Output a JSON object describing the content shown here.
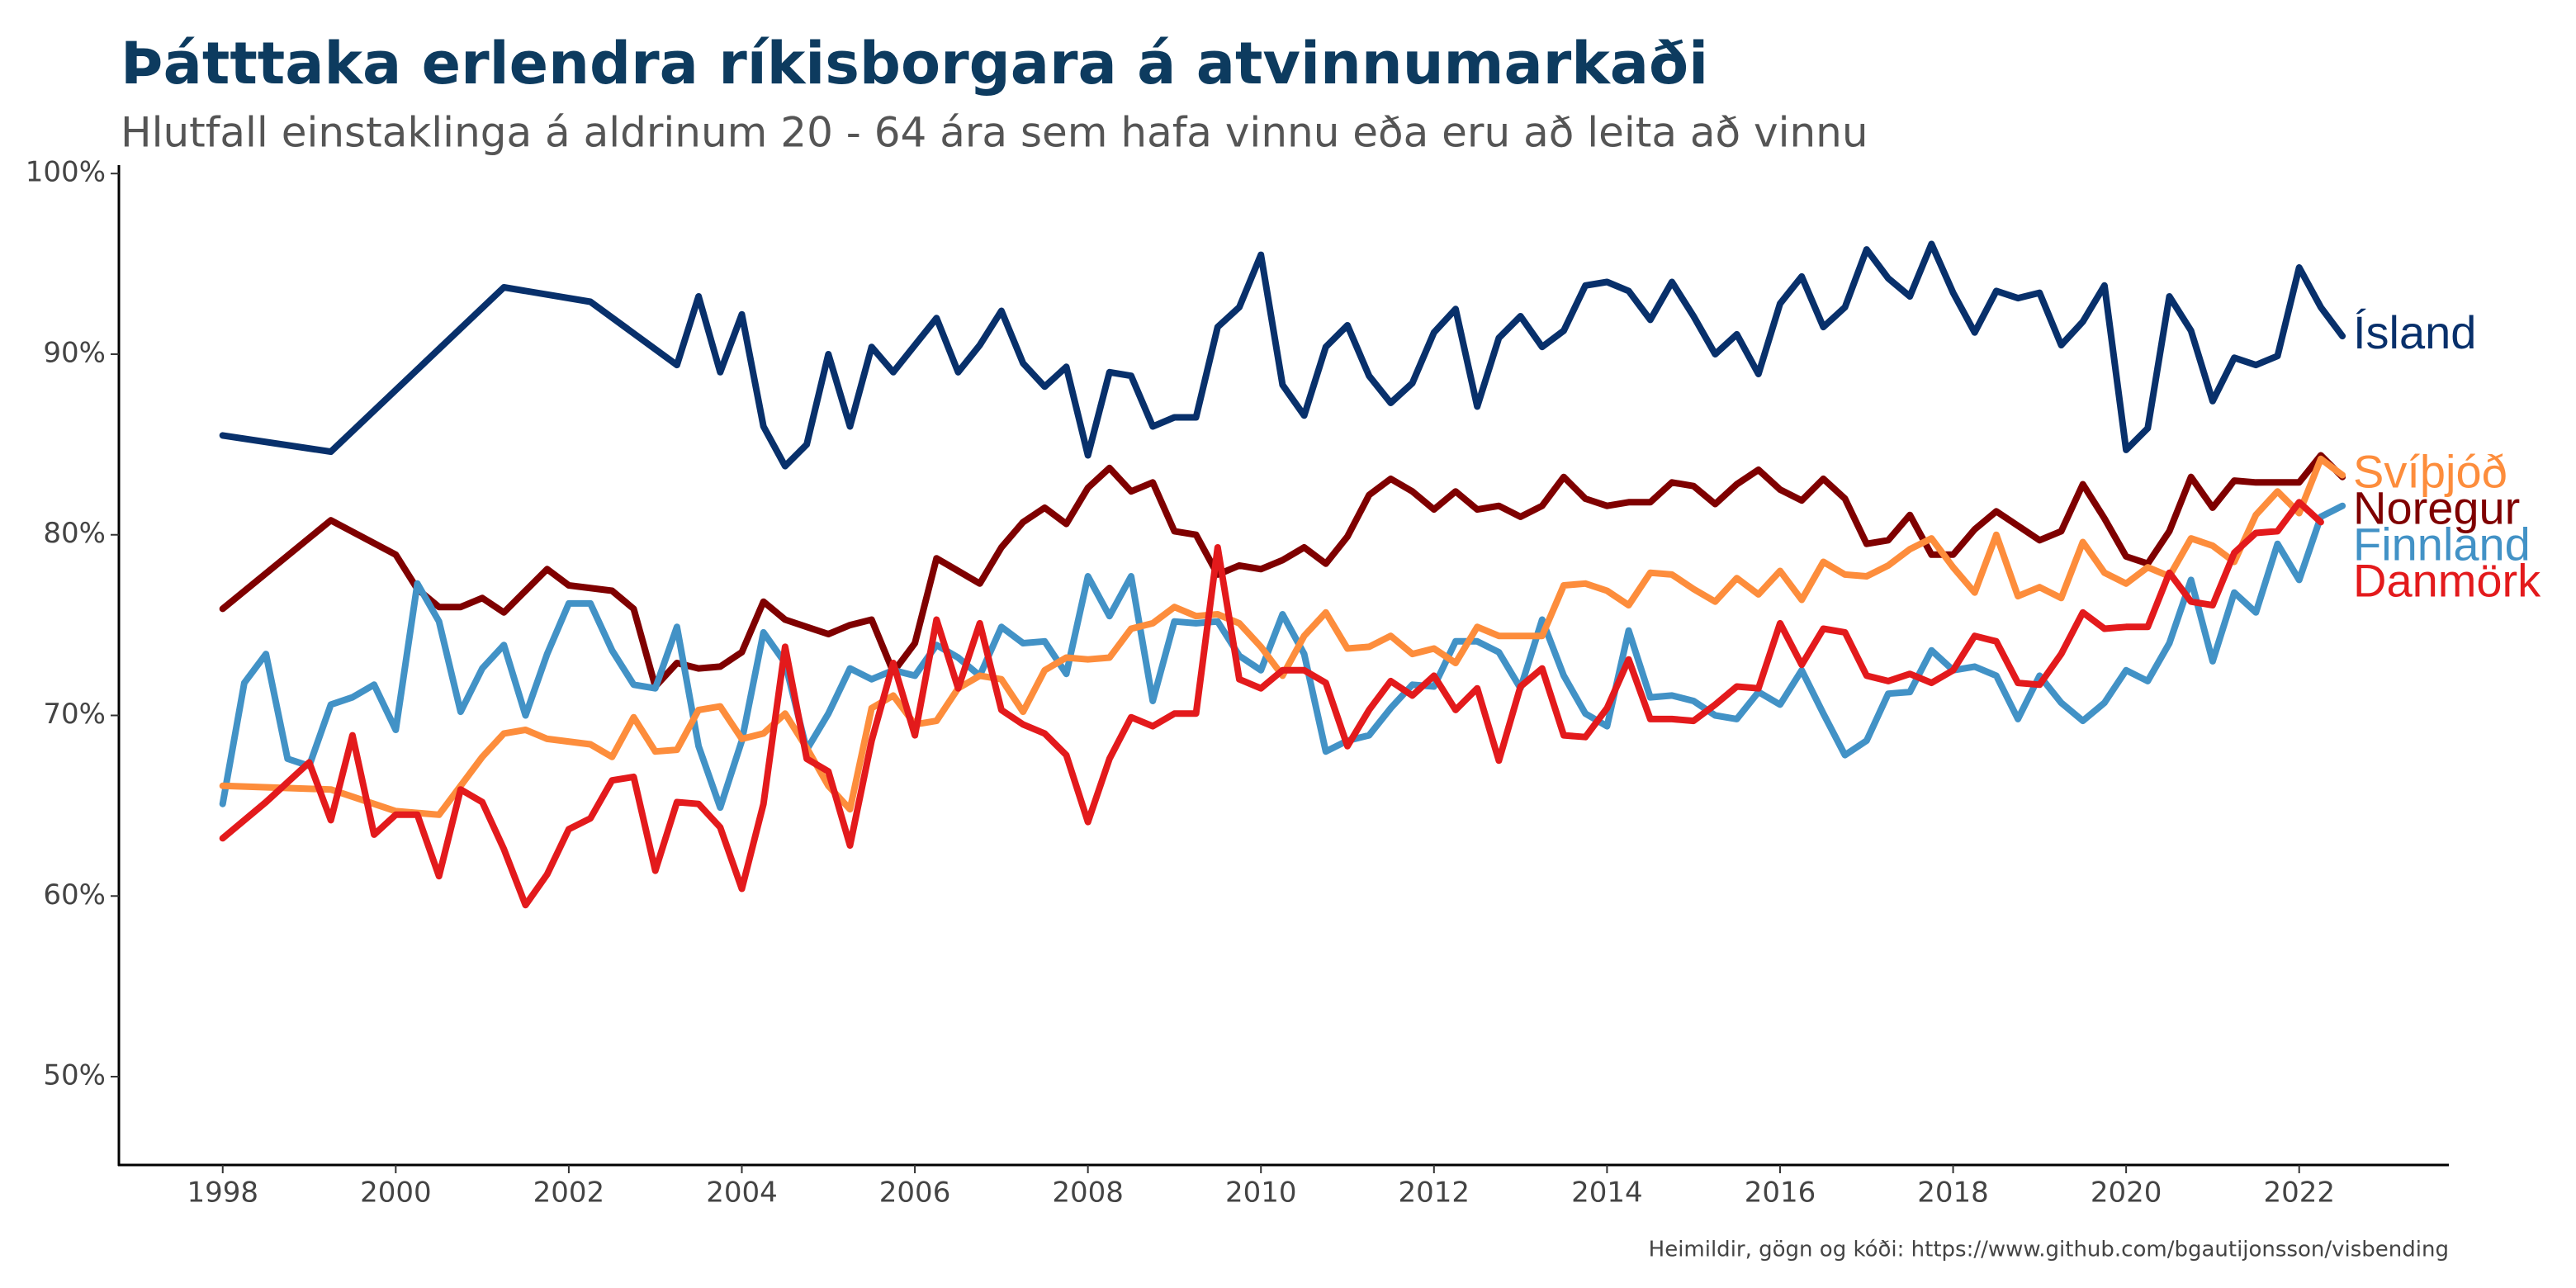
{
  "chart_data": {
    "type": "line",
    "title": "Þátttaka erlendra ríkisborgara á atvinnumarkaði",
    "subtitle": "Hlutfall einstaklinga á aldrinum 20 - 64 ára sem hafa vinnu eða eru að leita að vinnu",
    "caption": "Heimildir, gögn og kóði: https://www.github.com/bgautijonsson/visbending",
    "xlim": [
      1996.8,
      2023.73
    ],
    "xticks": [
      1998,
      2000,
      2002,
      2004,
      2006,
      2008,
      2010,
      2012,
      2014,
      2016,
      2018,
      2020,
      2022
    ],
    "ylim": [
      45,
      100
    ],
    "yticks": [
      {
        "value": 50,
        "label": "50%"
      },
      {
        "value": 60,
        "label": "60%"
      },
      {
        "value": 70,
        "label": "70%"
      },
      {
        "value": 80,
        "label": "80%"
      },
      {
        "value": 90,
        "label": "90%"
      },
      {
        "value": 100,
        "label": "100%"
      }
    ],
    "grid": false,
    "series": [
      {
        "name": "Ísland",
        "color": "#08306b",
        "x": [
          1998,
          1999.25,
          2001.25,
          2002.25,
          2003.25,
          2003.5,
          2003.75,
          2004,
          2004.25,
          2004.5,
          2004.75,
          2005,
          2005.25,
          2005.5,
          2005.75,
          2006,
          2006.25,
          2006.5,
          2006.75,
          2007,
          2007.25,
          2007.5,
          2007.75,
          2008,
          2008.25,
          2008.5,
          2008.75,
          2009,
          2009.25,
          2009.5,
          2009.75,
          2010,
          2010.25,
          2010.5,
          2010.75,
          2011,
          2011.25,
          2011.5,
          2011.75,
          2012,
          2012.25,
          2012.5,
          2012.75,
          2013,
          2013.25,
          2013.5,
          2013.75,
          2014,
          2014.25,
          2014.5,
          2014.75,
          2015,
          2015.25,
          2015.5,
          2015.75,
          2016,
          2016.25,
          2016.5,
          2016.75,
          2017,
          2017.25,
          2017.5,
          2017.75,
          2018,
          2018.25,
          2018.5,
          2018.75,
          2019,
          2019.25,
          2019.5,
          2019.75,
          2020,
          2020.25,
          2020.5,
          2020.75,
          2021,
          2021.25,
          2021.5,
          2021.75,
          2022,
          2022.25,
          2022.5
        ],
        "values": [
          85.5,
          84.6,
          93.7,
          92.9,
          89.4,
          93.2,
          89,
          92.2,
          86,
          83.8,
          85,
          90,
          86,
          90.4,
          89,
          90.5,
          92,
          89,
          90.5,
          92.4,
          89.5,
          88.2,
          89.3,
          84.4,
          89,
          88.8,
          86,
          86.5,
          86.5,
          91.5,
          92.6,
          95.5,
          88.3,
          86.6,
          90.4,
          91.6,
          88.8,
          87.3,
          88.4,
          91.2,
          92.5,
          87.1,
          90.9,
          92.1,
          90.4,
          91.3,
          93.8,
          94,
          93.5,
          91.9,
          94,
          92.1,
          90,
          91.1,
          88.9,
          92.8,
          94.3,
          91.5,
          92.6,
          95.8,
          94.2,
          93.2,
          96.1,
          93.4,
          91.2,
          93.5,
          93.1,
          93.4,
          90.5,
          91.8,
          93.8,
          84.7,
          85.9,
          93.2,
          91.3,
          87.4,
          89.8,
          89.4,
          89.9,
          94.8,
          92.6,
          91
        ]
      },
      {
        "name": "Noregur",
        "color": "#7f0000",
        "x": [
          1998,
          1999.25,
          2000,
          2000.25,
          2000.5,
          2000.75,
          2001,
          2001.25,
          2001.5,
          2001.75,
          2002,
          2002.5,
          2002.75,
          2003,
          2003.25,
          2003.5,
          2003.75,
          2004,
          2004.25,
          2004.5,
          2004.75,
          2005,
          2005.25,
          2005.5,
          2005.75,
          2006,
          2006.25,
          2006.5,
          2006.75,
          2007,
          2007.25,
          2007.5,
          2007.75,
          2008,
          2008.25,
          2008.5,
          2008.75,
          2009,
          2009.25,
          2009.5,
          2009.75,
          2010,
          2010.25,
          2010.5,
          2010.75,
          2011,
          2011.25,
          2011.5,
          2011.75,
          2012,
          2012.25,
          2012.5,
          2012.75,
          2013,
          2013.25,
          2013.5,
          2013.75,
          2014,
          2014.25,
          2014.5,
          2014.75,
          2015,
          2015.25,
          2015.5,
          2015.75,
          2016,
          2016.25,
          2016.5,
          2016.75,
          2017,
          2017.25,
          2017.5,
          2017.75,
          2018,
          2018.25,
          2018.5,
          2018.75,
          2019,
          2019.25,
          2019.5,
          2019.75,
          2020,
          2020.25,
          2020.5,
          2020.75,
          2021,
          2021.25,
          2021.5,
          2021.75,
          2022,
          2022.25,
          2022.5
        ],
        "values": [
          75.9,
          80.8,
          78.9,
          77,
          76,
          76,
          76.5,
          75.7,
          76.9,
          78.1,
          77.2,
          76.9,
          75.9,
          71.6,
          72.9,
          72.6,
          72.7,
          73.5,
          76.3,
          75.3,
          74.9,
          74.5,
          75,
          75.3,
          72.4,
          74,
          78.7,
          78,
          77.3,
          79.3,
          80.7,
          81.5,
          80.6,
          82.6,
          83.7,
          82.4,
          82.9,
          80.2,
          80,
          77.8,
          78.3,
          78.1,
          78.6,
          79.3,
          78.4,
          79.9,
          82.2,
          83.1,
          82.4,
          81.4,
          82.4,
          81.4,
          81.6,
          81,
          81.6,
          83.2,
          82,
          81.6,
          81.8,
          81.8,
          82.9,
          82.7,
          81.7,
          82.8,
          83.6,
          82.5,
          81.9,
          83.1,
          82,
          79.5,
          79.7,
          81.1,
          78.9,
          78.9,
          80.3,
          81.3,
          80.5,
          79.7,
          80.2,
          82.8,
          80.9,
          78.8,
          78.4,
          80.2,
          83.2,
          81.5,
          83,
          82.9,
          82.9,
          82.9,
          84.4,
          83.2
        ]
      },
      {
        "name": "Finnland",
        "color": "#4292c6",
        "x": [
          1998,
          1998.25,
          1998.5,
          1998.75,
          1999,
          1999.25,
          1999.5,
          1999.75,
          2000,
          2000.25,
          2000.5,
          2000.75,
          2001,
          2001.25,
          2001.5,
          2001.75,
          2002,
          2002.25,
          2002.5,
          2002.75,
          2003,
          2003.25,
          2003.5,
          2003.75,
          2004,
          2004.25,
          2004.5,
          2004.75,
          2005,
          2005.25,
          2005.5,
          2005.75,
          2006,
          2006.25,
          2006.5,
          2006.75,
          2007,
          2007.25,
          2007.5,
          2007.75,
          2008,
          2008.25,
          2008.5,
          2008.75,
          2009,
          2009.25,
          2009.5,
          2009.75,
          2010,
          2010.25,
          2010.5,
          2010.75,
          2011,
          2011.25,
          2011.5,
          2011.75,
          2012,
          2012.25,
          2012.5,
          2012.75,
          2013,
          2013.25,
          2013.5,
          2013.75,
          2014,
          2014.25,
          2014.5,
          2014.75,
          2015,
          2015.25,
          2015.5,
          2015.75,
          2016,
          2016.25,
          2016.5,
          2016.75,
          2017,
          2017.25,
          2017.5,
          2017.75,
          2018,
          2018.25,
          2018.5,
          2018.75,
          2019,
          2019.25,
          2019.5,
          2019.75,
          2020,
          2020.25,
          2020.5,
          2020.75,
          2021,
          2021.25,
          2021.5,
          2021.75,
          2022,
          2022.25,
          2022.5
        ],
        "values": [
          65.1,
          71.8,
          73.4,
          67.6,
          67.2,
          70.6,
          71,
          71.7,
          69.2,
          77.3,
          75.2,
          70.2,
          72.6,
          73.9,
          70,
          73.4,
          76.2,
          76.2,
          73.6,
          71.7,
          71.5,
          74.9,
          68.3,
          64.9,
          68.6,
          74.6,
          72.9,
          68.1,
          70.1,
          72.6,
          72,
          72.5,
          72.2,
          73.9,
          73.2,
          72.2,
          74.9,
          74,
          74.1,
          72.3,
          77.7,
          75.5,
          77.7,
          70.8,
          75.2,
          75.1,
          75.2,
          73.3,
          72.5,
          75.6,
          73.4,
          68,
          68.6,
          68.9,
          70.4,
          71.7,
          71.6,
          74.1,
          74.1,
          73.5,
          71.5,
          75.3,
          72.2,
          70.1,
          69.4,
          74.7,
          71,
          71.1,
          70.8,
          70,
          69.8,
          71.3,
          70.6,
          72.5,
          70.1,
          67.8,
          68.6,
          71.2,
          71.3,
          73.6,
          72.5,
          72.7,
          72.2,
          69.8,
          72.2,
          70.7,
          69.7,
          70.7,
          72.5,
          71.9,
          74,
          77.5,
          73,
          76.8,
          75.7,
          79.5,
          77.5,
          81,
          81.6
        ]
      },
      {
        "name": "Svíþjóð",
        "color": "#fd8d3c",
        "x": [
          1998,
          1999.25,
          2000,
          2000.5,
          2001,
          2001.25,
          2001.5,
          2001.75,
          2002.25,
          2002.5,
          2002.75,
          2003,
          2003.25,
          2003.5,
          2003.75,
          2004,
          2004.25,
          2004.5,
          2004.75,
          2005,
          2005.25,
          2005.5,
          2005.75,
          2006,
          2006.25,
          2006.5,
          2006.75,
          2007,
          2007.25,
          2007.5,
          2007.75,
          2008,
          2008.25,
          2008.5,
          2008.75,
          2009,
          2009.25,
          2009.5,
          2009.75,
          2010,
          2010.25,
          2010.5,
          2010.75,
          2011,
          2011.25,
          2011.5,
          2011.75,
          2012,
          2012.25,
          2012.5,
          2012.75,
          2013,
          2013.25,
          2013.5,
          2013.75,
          2014,
          2014.25,
          2014.5,
          2014.75,
          2015,
          2015.25,
          2015.5,
          2015.75,
          2016,
          2016.25,
          2016.5,
          2016.75,
          2017,
          2017.25,
          2017.5,
          2017.75,
          2018,
          2018.25,
          2018.5,
          2018.75,
          2019,
          2019.25,
          2019.5,
          2019.75,
          2020,
          2020.25,
          2020.5,
          2020.75,
          2021,
          2021.25,
          2021.5,
          2021.75,
          2022,
          2022.25,
          2022.5
        ],
        "values": [
          66.1,
          65.9,
          64.7,
          64.5,
          67.7,
          69,
          69.2,
          68.7,
          68.4,
          67.7,
          69.9,
          68,
          68.1,
          70.3,
          70.5,
          68.7,
          69,
          70.1,
          68.2,
          66.1,
          64.8,
          70.4,
          71.1,
          69.5,
          69.7,
          71.5,
          72.2,
          72,
          70.2,
          72.5,
          73.2,
          73.1,
          73.2,
          74.8,
          75.1,
          76,
          75.5,
          75.6,
          75.1,
          73.8,
          72.2,
          74.4,
          75.7,
          73.7,
          73.8,
          74.4,
          73.4,
          73.7,
          72.9,
          74.9,
          74.4,
          74.4,
          74.4,
          77.2,
          77.3,
          76.9,
          76.1,
          77.9,
          77.8,
          77,
          76.3,
          77.6,
          76.7,
          78,
          76.4,
          78.5,
          77.8,
          77.7,
          78.3,
          79.2,
          79.8,
          78.2,
          76.8,
          80,
          76.6,
          77.1,
          76.5,
          79.6,
          77.9,
          77.3,
          78.2,
          77.7,
          79.8,
          79.4,
          78.5,
          81.1,
          82.4,
          81.2,
          84.2,
          83.3
        ]
      },
      {
        "name": "Danmörk",
        "color": "#e31a1c",
        "x": [
          1998,
          1998.5,
          1999,
          1999.25,
          1999.5,
          1999.75,
          2000,
          2000.25,
          2000.5,
          2000.75,
          2001,
          2001.25,
          2001.5,
          2001.75,
          2002,
          2002.25,
          2002.5,
          2002.75,
          2003,
          2003.25,
          2003.5,
          2003.75,
          2004,
          2004.25,
          2004.5,
          2004.75,
          2005,
          2005.25,
          2005.5,
          2005.75,
          2006,
          2006.25,
          2006.5,
          2006.75,
          2007,
          2007.25,
          2007.5,
          2007.75,
          2008,
          2008.25,
          2008.5,
          2008.75,
          2009,
          2009.25,
          2009.5,
          2009.75,
          2010,
          2010.25,
          2010.5,
          2010.75,
          2011,
          2011.25,
          2011.5,
          2011.75,
          2012,
          2012.25,
          2012.5,
          2012.75,
          2013,
          2013.25,
          2013.5,
          2013.75,
          2014,
          2014.25,
          2014.5,
          2014.75,
          2015,
          2015.25,
          2015.5,
          2015.75,
          2016,
          2016.25,
          2016.5,
          2016.75,
          2017,
          2017.25,
          2017.5,
          2017.75,
          2018,
          2018.25,
          2018.5,
          2018.75,
          2019,
          2019.25,
          2019.5,
          2019.75,
          2020,
          2020.25,
          2020.5,
          2020.75,
          2021,
          2021.25,
          2021.5,
          2021.75,
          2022,
          2022.25
        ],
        "values": [
          63.2,
          65.2,
          67.4,
          64.2,
          68.9,
          63.4,
          64.5,
          64.5,
          61.1,
          65.9,
          65.2,
          62.6,
          59.5,
          61.2,
          63.7,
          64.3,
          66.4,
          66.6,
          61.4,
          65.2,
          65.1,
          63.8,
          60.4,
          65.1,
          73.8,
          67.6,
          66.9,
          62.8,
          68.6,
          72.9,
          68.9,
          75.3,
          71.5,
          75.1,
          70.3,
          69.5,
          69,
          67.8,
          64.1,
          67.6,
          69.9,
          69.4,
          70.1,
          70.1,
          79.3,
          72,
          71.5,
          72.5,
          72.5,
          71.8,
          68.3,
          70.3,
          71.9,
          71.1,
          72.2,
          70.3,
          71.5,
          67.5,
          71.6,
          72.6,
          68.9,
          68.8,
          70.4,
          73.1,
          69.8,
          69.8,
          69.7,
          70.6,
          71.6,
          71.5,
          75.1,
          72.8,
          74.8,
          74.6,
          72.2,
          71.9,
          72.3,
          71.8,
          72.5,
          74.4,
          74.1,
          71.8,
          71.7,
          73.4,
          75.7,
          74.8,
          74.9,
          74.9,
          77.9,
          76.3,
          76.1,
          79,
          80.1,
          80.2,
          81.8,
          80.7
        ]
      }
    ]
  }
}
